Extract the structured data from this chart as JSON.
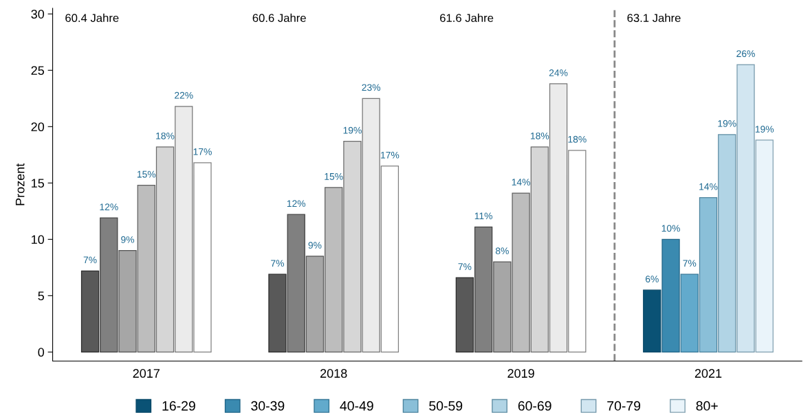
{
  "chart_data": {
    "type": "bar",
    "ylabel": "Prozent",
    "categories": [
      "2017",
      "2018",
      "2019",
      "2021"
    ],
    "series": [
      {
        "name": "16-29",
        "color": "#0a5275",
        "colors": [
          "#595959",
          "#595959",
          "#595959",
          "#0a5275"
        ],
        "values": [
          7.2,
          6.9,
          6.6,
          5.5
        ],
        "value_labels": [
          "7%",
          "7%",
          "7%",
          "6%"
        ]
      },
      {
        "name": "30-39",
        "color": "#3a8ab0",
        "colors": [
          "#808080",
          "#808080",
          "#808080",
          "#3a8ab0"
        ],
        "values": [
          11.9,
          12.2,
          11.1,
          10.0
        ],
        "value_labels": [
          "12%",
          "12%",
          "11%",
          "10%"
        ]
      },
      {
        "name": "40-49",
        "color": "#62aacc",
        "colors": [
          "#a6a6a6",
          "#a6a6a6",
          "#a6a6a6",
          "#62aacc"
        ],
        "values": [
          9.0,
          8.5,
          8.0,
          6.9
        ],
        "value_labels": [
          "9%",
          "9%",
          "8%",
          "7%"
        ]
      },
      {
        "name": "50-59",
        "color": "#8abfd8",
        "colors": [
          "#bdbdbd",
          "#bdbdbd",
          "#bdbdbd",
          "#8abfd8"
        ],
        "values": [
          14.8,
          14.6,
          14.1,
          13.7
        ],
        "value_labels": [
          "15%",
          "15%",
          "14%",
          "14%"
        ]
      },
      {
        "name": "60-69",
        "color": "#b1d4e5",
        "colors": [
          "#d6d6d6",
          "#d6d6d6",
          "#d6d6d6",
          "#b1d4e5"
        ],
        "values": [
          18.2,
          18.7,
          18.2,
          19.3
        ],
        "value_labels": [
          "18%",
          "19%",
          "18%",
          "19%"
        ]
      },
      {
        "name": "70-79",
        "color": "#d2e6f1",
        "colors": [
          "#ebebeb",
          "#ebebeb",
          "#ebebeb",
          "#d2e6f1"
        ],
        "values": [
          21.8,
          22.5,
          23.8,
          25.5
        ],
        "value_labels": [
          "22%",
          "23%",
          "24%",
          "26%"
        ]
      },
      {
        "name": "80+",
        "color": "#eaf4fa",
        "colors": [
          "#ffffff",
          "#ffffff",
          "#ffffff",
          "#eaf4fa"
        ],
        "values": [
          16.8,
          16.5,
          17.9,
          18.8
        ],
        "value_labels": [
          "17%",
          "17%",
          "18%",
          "19%"
        ]
      }
    ],
    "annotations": [
      "60.4 Jahre",
      "60.6 Jahre",
      "61.6 Jahre",
      "63.1 Jahre"
    ],
    "ylim": [
      -0.8,
      30.5
    ],
    "yticks": [
      0,
      5,
      10,
      15,
      20,
      25,
      30
    ],
    "grid": false,
    "legend": "bottom"
  }
}
